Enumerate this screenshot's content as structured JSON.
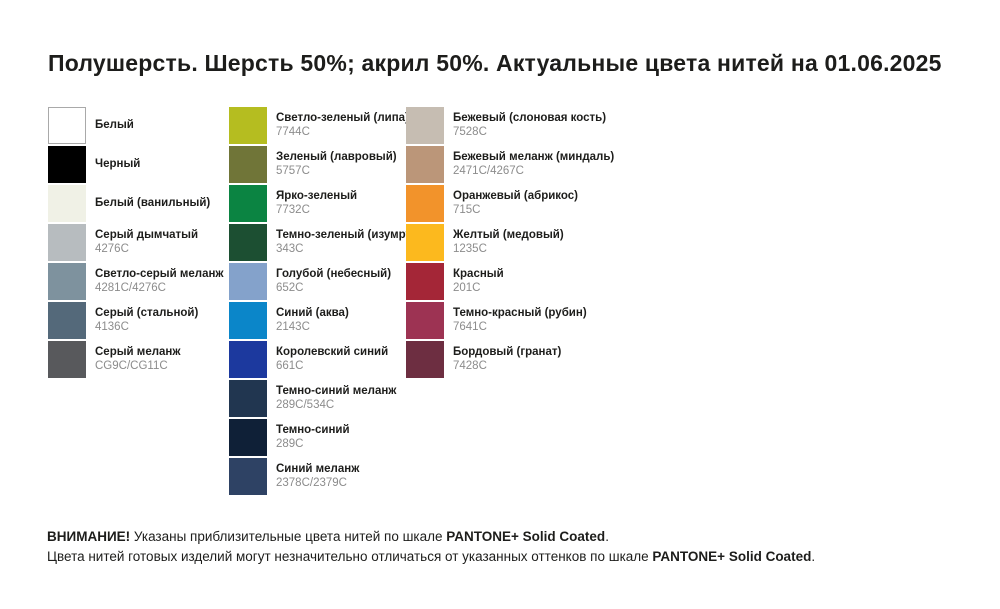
{
  "title": "Полушерсть. Шерсть 50%; акрил 50%. Актуальные цвета нитей на 01.06.2025",
  "columns": [
    {
      "swatches": [
        {
          "name": "Белый",
          "code": "",
          "color": "#ffffff",
          "bordered": true
        },
        {
          "name": "Черный",
          "code": "",
          "color": "#000000"
        },
        {
          "name": "Белый (ванильный)",
          "code": "",
          "color": "#f0f1e6"
        },
        {
          "name": "Серый дымчатый",
          "code": "4276C",
          "color": "#b7bcbf"
        },
        {
          "name": "Светло-серый меланж",
          "code": "4281C/4276C",
          "color": "#7e929e"
        },
        {
          "name": "Серый (стальной)",
          "code": "4136C",
          "color": "#54697a"
        },
        {
          "name": "Серый меланж",
          "code": "CG9C/CG11C",
          "color": "#58595c"
        }
      ]
    },
    {
      "swatches": [
        {
          "name": "Светло-зеленый (липа)",
          "code": "7744C",
          "color": "#b5bd20"
        },
        {
          "name": "Зеленый (лавровый)",
          "code": "5757C",
          "color": "#707538"
        },
        {
          "name": "Ярко-зеленый",
          "code": "7732C",
          "color": "#0b8442"
        },
        {
          "name": "Темно-зеленый (изумруд)",
          "code": "343C",
          "color": "#1c4f32"
        },
        {
          "name": "Голубой (небесный)",
          "code": "652C",
          "color": "#84a2cb"
        },
        {
          "name": "Синий (аква)",
          "code": "2143C",
          "color": "#0b86c9"
        },
        {
          "name": "Королевский синий",
          "code": "661C",
          "color": "#1c399e"
        },
        {
          "name": "Темно-синий меланж",
          "code": "289C/534C",
          "color": "#213650"
        },
        {
          "name": "Темно-синий",
          "code": "289C",
          "color": "#0f2037"
        },
        {
          "name": "Синий меланж",
          "code": "2378C/2379C",
          "color": "#2e4264"
        }
      ]
    },
    {
      "swatches": [
        {
          "name": "Бежевый (слоновая кость)",
          "code": "7528C",
          "color": "#c6bdb2"
        },
        {
          "name": "Бежевый меланж (миндаль)",
          "code": "2471C/4267C",
          "color": "#bb9679"
        },
        {
          "name": "Оранжевый (абрикос)",
          "code": "715C",
          "color": "#f2932b"
        },
        {
          "name": "Желтый (медовый)",
          "code": "1235C",
          "color": "#fcb91e"
        },
        {
          "name": "Красный",
          "code": "201C",
          "color": "#a42637"
        },
        {
          "name": "Темно-красный (рубин)",
          "code": "7641C",
          "color": "#9d3353"
        },
        {
          "name": "Бордовый (гранат)",
          "code": "7428C",
          "color": "#6d2e41"
        }
      ]
    }
  ],
  "footer": {
    "line1_bold1": "ВНИМАНИЕ!",
    "line1_text": " Указаны приблизительные цвета нитей по шкале ",
    "line1_bold2": "PANTONE+ Solid Coated",
    "line1_end": ".",
    "line2_text": "Цвета нитей готовых изделий могут незначительно отличаться от указанных оттенков по шкале ",
    "line2_bold": "PANTONE+ Solid Coated",
    "line2_end": "."
  }
}
